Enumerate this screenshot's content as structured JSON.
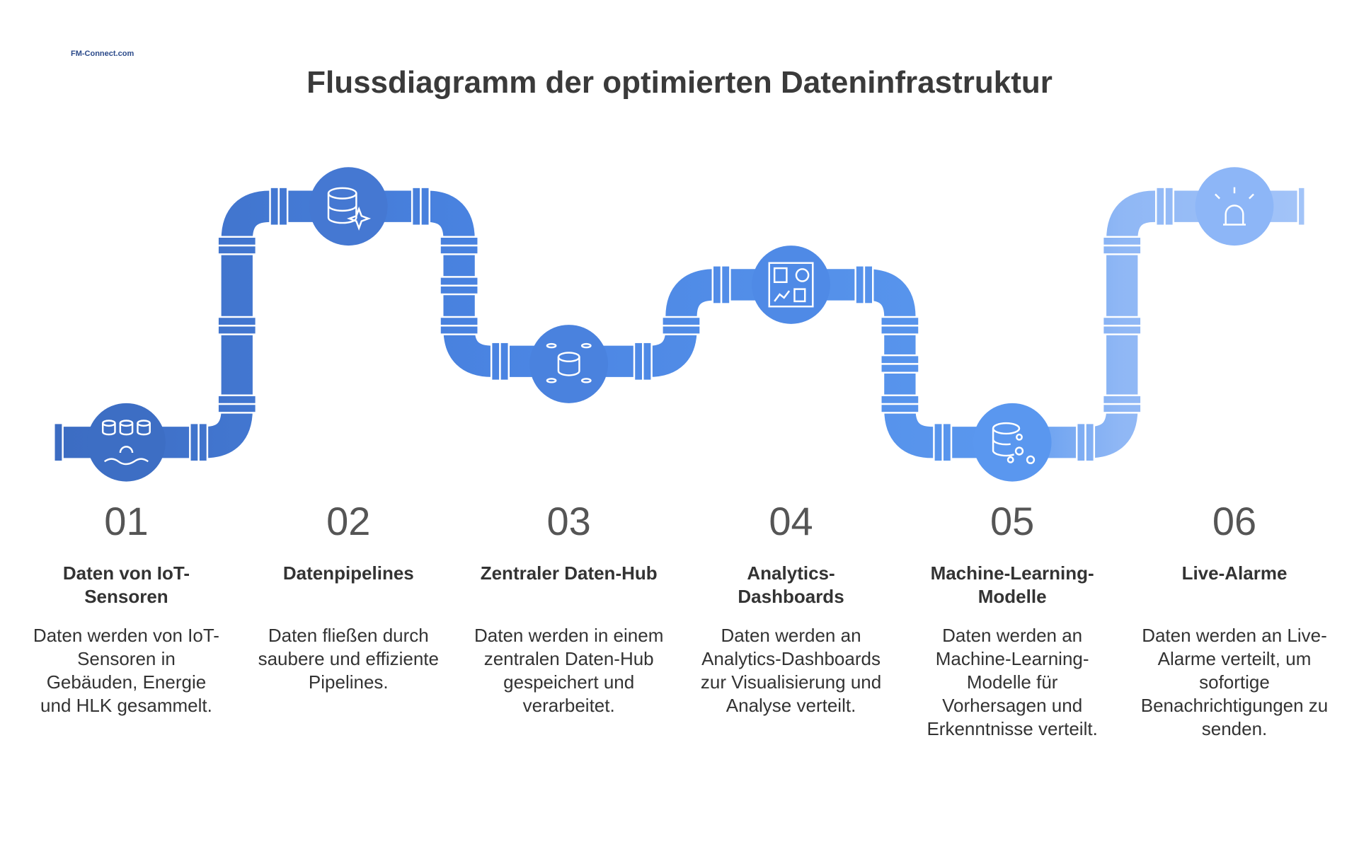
{
  "header": {
    "logo": "FM-Connect.com",
    "title": "Flussdiagramm der optimierten Dateninfrastruktur"
  },
  "steps": [
    {
      "number": "01",
      "title": "Daten von IoT-Sensoren",
      "description": "Daten werden von IoT-Sensoren in Gebäuden, Energie und HLK gesammelt."
    },
    {
      "number": "02",
      "title": "Datenpipelines",
      "description": "Daten fließen durch saubere und effiziente Pipelines."
    },
    {
      "number": "03",
      "title": "Zentraler Daten-Hub",
      "description": "Daten werden in einem zentralen Daten-Hub gespeichert und verarbeitet."
    },
    {
      "number": "04",
      "title": "Analytics-Dashboards",
      "description": "Daten werden an Analytics-Dashboards zur Visualisierung und Analyse verteilt."
    },
    {
      "number": "05",
      "title": "Machine-Learning-Modelle",
      "description": "Daten werden an Machine-Learning-Modelle für Vorhersagen und Erkenntnisse verteilt."
    },
    {
      "number": "06",
      "title": "Live-Alarme",
      "description": "Daten werden an Live-Alarme verteilt, um sofortige Benachrichtigungen zu senden."
    }
  ]
}
